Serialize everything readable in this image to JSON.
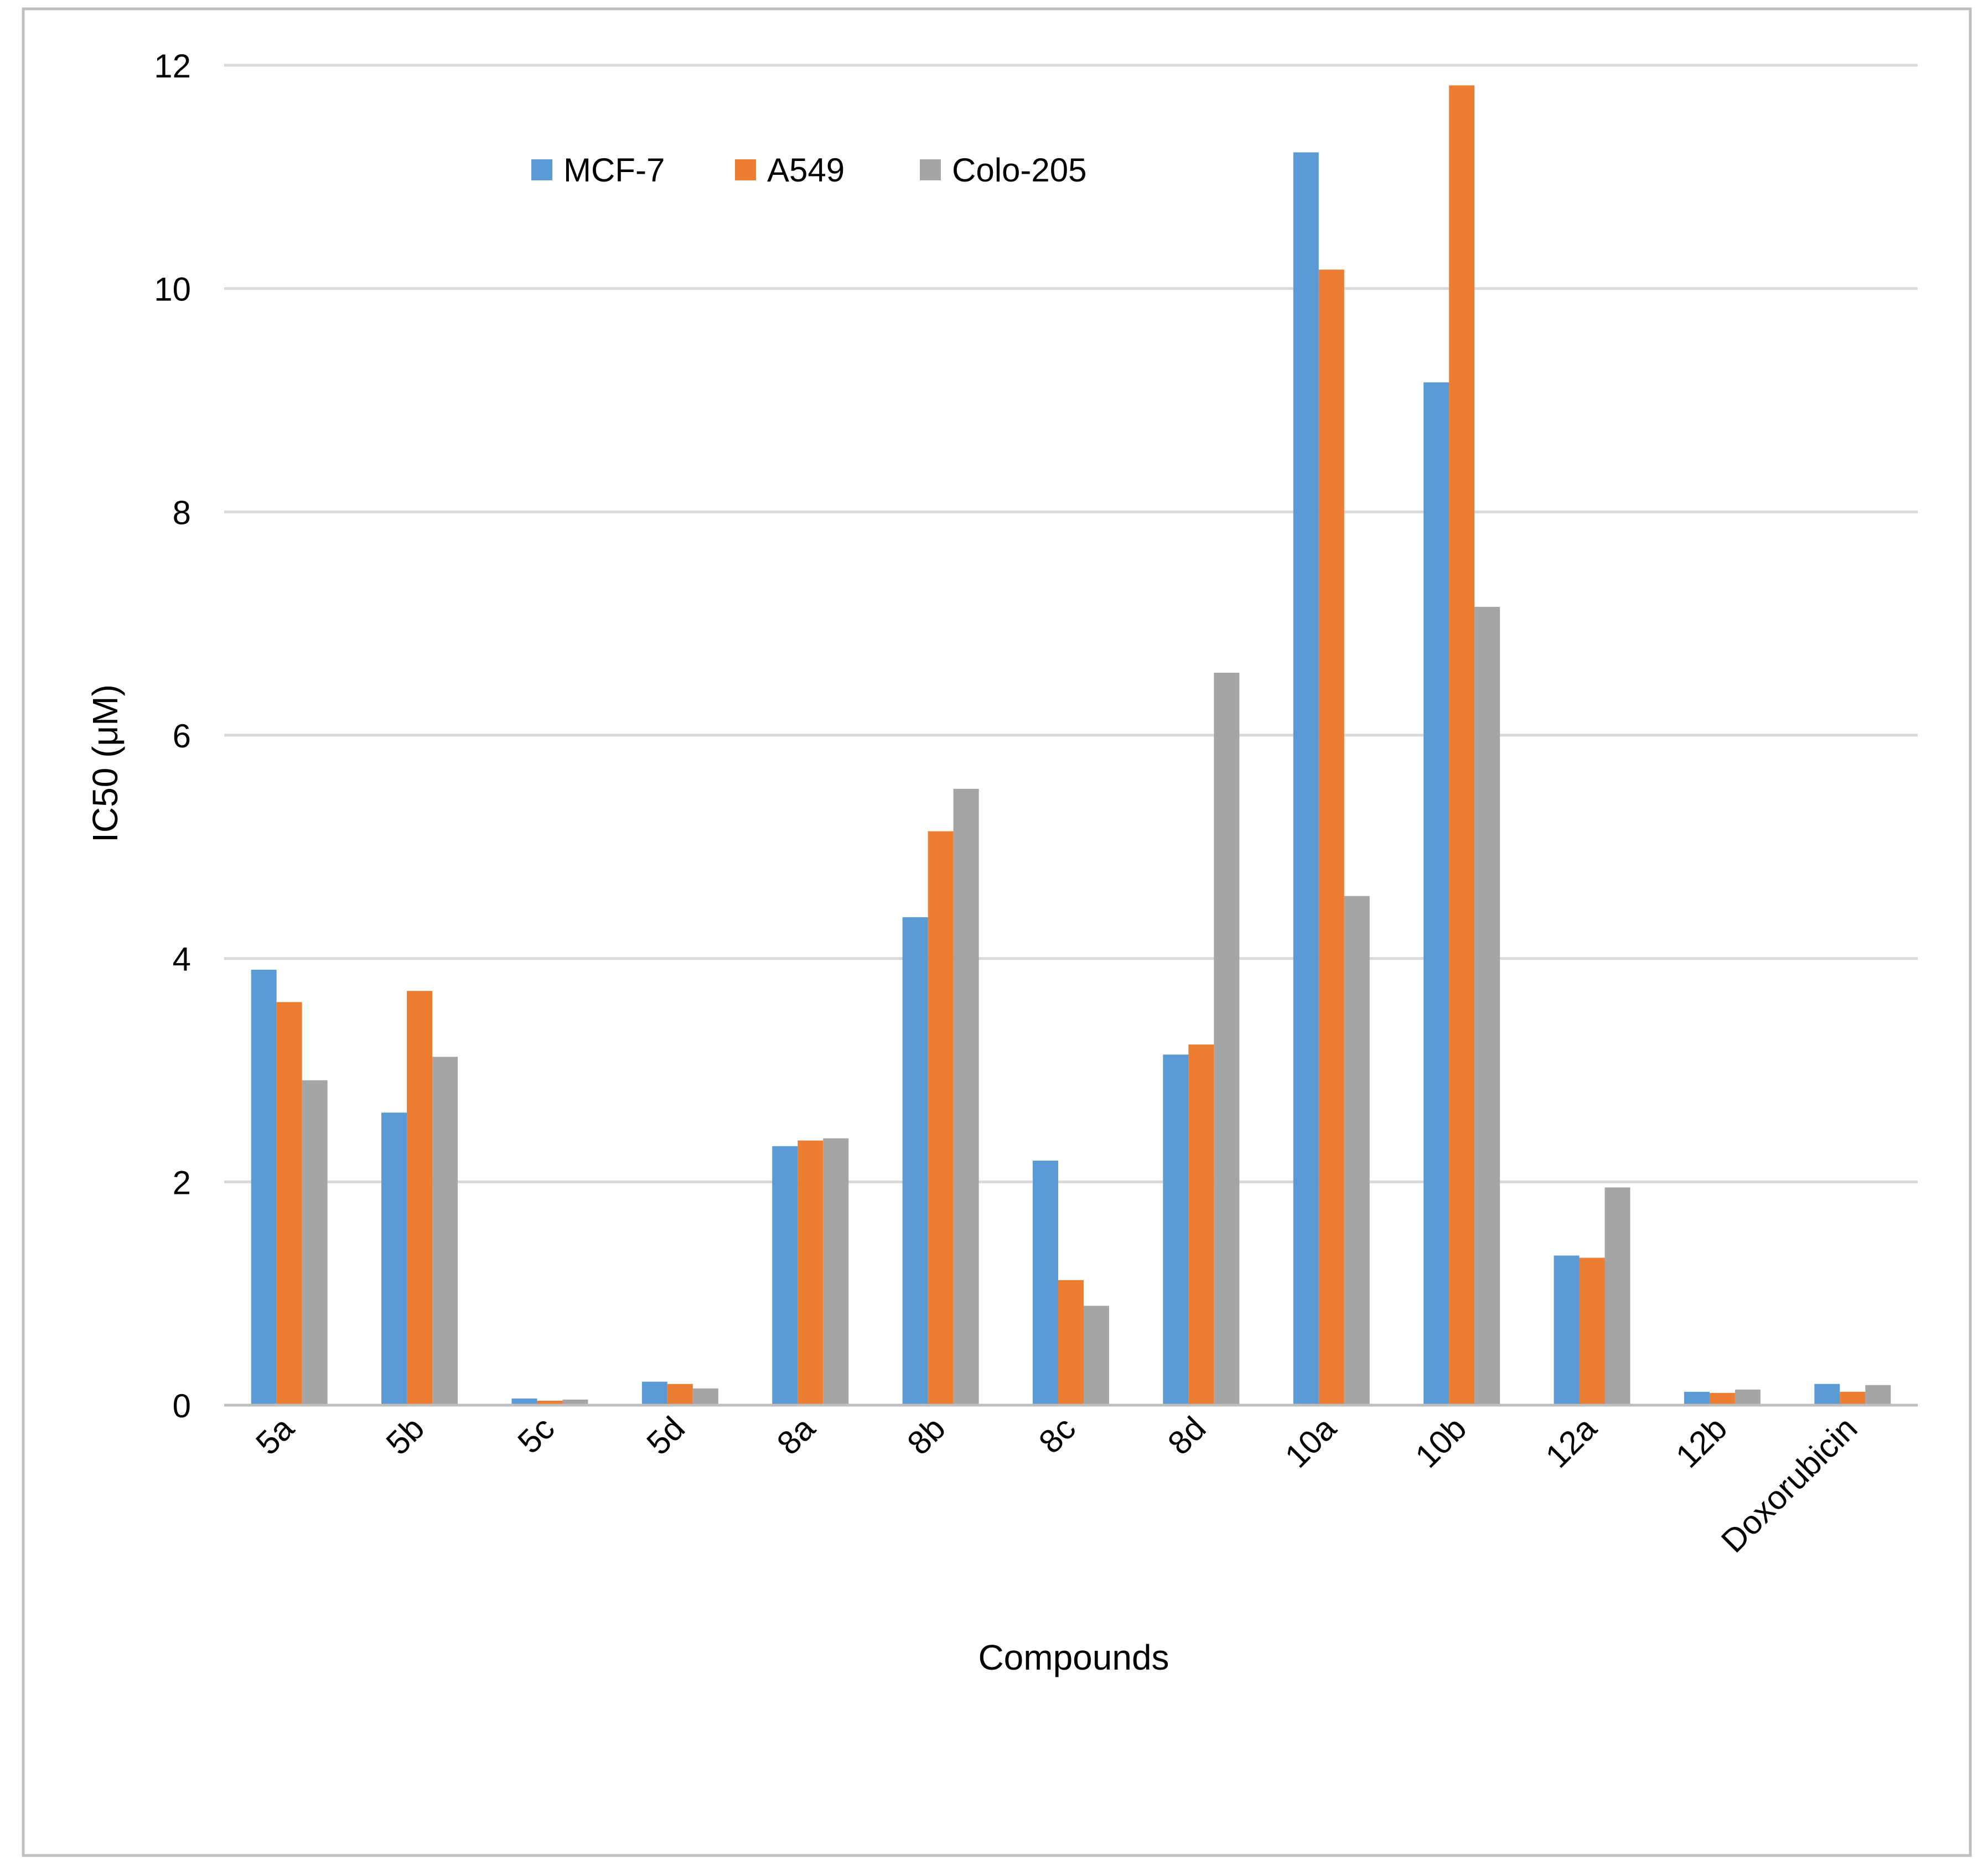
{
  "chart_data": {
    "type": "bar",
    "title": "",
    "xlabel": "Compounds",
    "ylabel": "IC50 (μM)",
    "ylim": [
      0,
      12
    ],
    "yticks": [
      0,
      2,
      4,
      6,
      8,
      10,
      12
    ],
    "grid": true,
    "legend_position": "top-left",
    "categories": [
      "5a",
      "5b",
      "5c",
      "5d",
      "8a",
      "8b",
      "8c",
      "8d",
      "10a",
      "10b",
      "12a",
      "12b",
      "Doxorubicin"
    ],
    "series": [
      {
        "name": "MCF-7",
        "color": "#5b9bd5",
        "values": [
          3.9,
          2.62,
          0.06,
          0.21,
          2.32,
          4.37,
          2.19,
          3.14,
          11.22,
          9.16,
          1.34,
          0.12,
          0.19
        ]
      },
      {
        "name": "A549",
        "color": "#ed7d31",
        "values": [
          3.61,
          3.71,
          0.04,
          0.19,
          2.37,
          5.14,
          1.12,
          3.23,
          10.17,
          11.82,
          1.32,
          0.11,
          0.12
        ]
      },
      {
        "name": "Colo-205",
        "color": "#a5a5a5",
        "values": [
          2.91,
          3.12,
          0.05,
          0.15,
          2.39,
          5.52,
          0.89,
          6.56,
          4.56,
          7.15,
          1.95,
          0.14,
          0.18
        ]
      }
    ]
  },
  "colors": {
    "grid": "#d9d9d9",
    "axis": "#bfbfbf",
    "frame": "#bfbfbf"
  }
}
